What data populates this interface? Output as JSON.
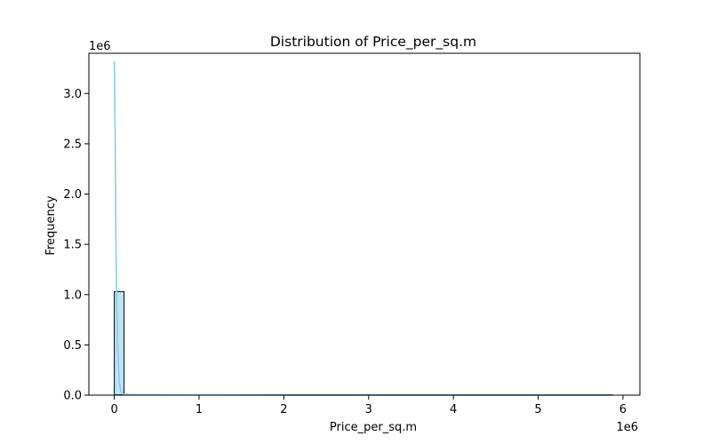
{
  "chart_data": {
    "type": "histogram",
    "title": "Distribution of Price_per_sq.m",
    "xlabel": "Price_per_sq.m",
    "ylabel": "Frequency",
    "x_offset_label": "1e6",
    "y_offset_label": "1e6",
    "xlim": [
      -0.3,
      6.2
    ],
    "ylim": [
      0,
      3.4
    ],
    "x_ticks": [
      0,
      1,
      2,
      3,
      4,
      5,
      6
    ],
    "x_tick_labels": [
      "0",
      "1",
      "2",
      "3",
      "4",
      "5",
      "6"
    ],
    "y_ticks": [
      0,
      0.5,
      1.0,
      1.5,
      2.0,
      2.5,
      3.0
    ],
    "y_tick_labels": [
      "0.0",
      "0.5",
      "1.0",
      "1.5",
      "2.0",
      "2.5",
      "3.0"
    ],
    "bins": [
      {
        "x0": 0.0,
        "x1": 0.115,
        "count": 1.03
      }
    ],
    "baseline_x_end": 5.88,
    "kde": {
      "x": [
        0.0,
        0.01,
        0.02,
        0.04,
        0.06,
        0.08,
        0.1,
        0.2,
        0.5,
        1,
        2,
        3,
        4,
        5,
        5.88
      ],
      "y": [
        3.32,
        2.6,
        1.4,
        0.45,
        0.12,
        0.03,
        0.01,
        0.005,
        0.005,
        0.002,
        0.0,
        0.0,
        0.0,
        0.0,
        0.0
      ]
    },
    "colors": {
      "bar_fill": "#87CEEB",
      "bar_stroke": "#000000",
      "kde_line": "#87CEEB",
      "baseline_line": "#1f4e79"
    },
    "grid": false,
    "legend": "none"
  }
}
